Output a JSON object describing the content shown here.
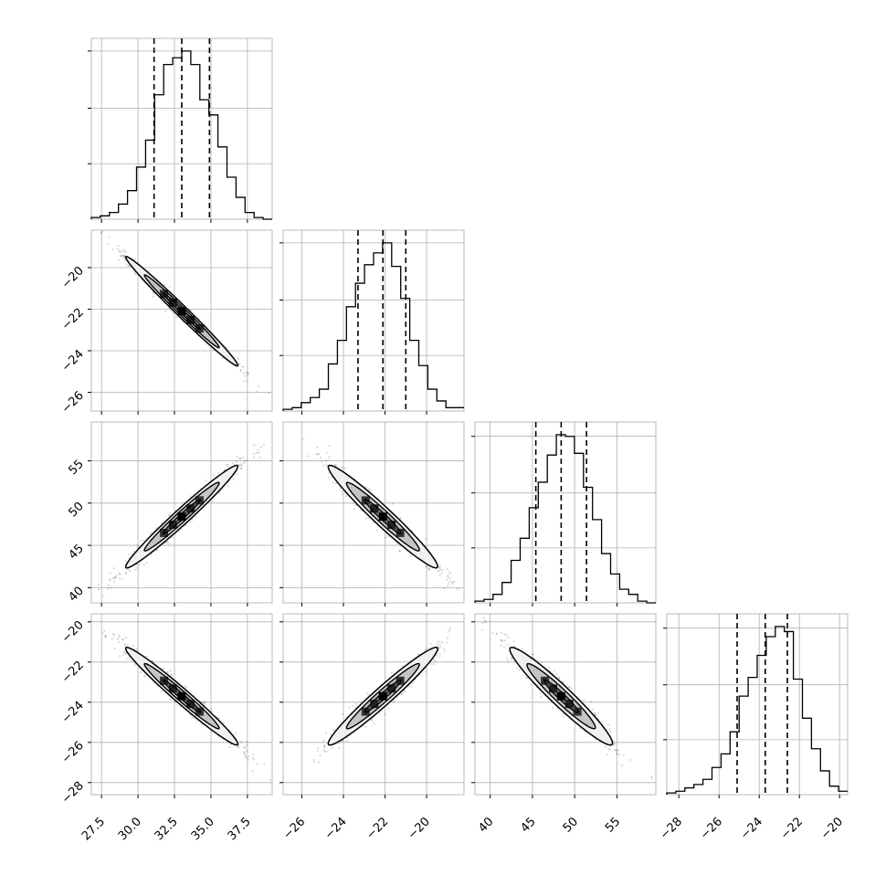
{
  "chart_data": {
    "type": "corner",
    "variables": [
      {
        "range": [
          26.8,
          39.2
        ],
        "ticks": [
          "27.5",
          "30.0",
          "32.5",
          "35.0",
          "37.5"
        ],
        "tick_values": [
          27.5,
          30.0,
          32.5,
          35.0,
          37.5
        ]
      },
      {
        "range": [
          -26.9,
          -18.2
        ],
        "ticks": [
          "-26",
          "-24",
          "-22",
          "-20"
        ],
        "tick_values": [
          -26,
          -24,
          -22,
          -20
        ]
      },
      {
        "range": [
          38.2,
          59.6
        ],
        "ticks": [
          "40",
          "45",
          "50",
          "55"
        ],
        "tick_values": [
          40,
          45,
          50,
          55
        ]
      },
      {
        "range": [
          -28.6,
          -19.6
        ],
        "ticks": [
          "-28",
          "-26",
          "-24",
          "-22",
          "-20"
        ],
        "tick_values": [
          -28,
          -26,
          -24,
          -22,
          -20
        ]
      }
    ],
    "histograms": [
      {
        "bin_edges": [
          26.8,
          27.42,
          28.04,
          28.66,
          29.28,
          29.9,
          30.52,
          31.14,
          31.76,
          32.38,
          33.0,
          33.62,
          34.24,
          34.86,
          35.48,
          36.1,
          36.72,
          37.34,
          37.96,
          38.58,
          39.2
        ],
        "counts": [
          0.01,
          0.02,
          0.04,
          0.09,
          0.17,
          0.31,
          0.47,
          0.74,
          0.92,
          0.96,
          1.0,
          0.92,
          0.71,
          0.62,
          0.43,
          0.25,
          0.13,
          0.04,
          0.01,
          0.0
        ],
        "quantiles": [
          31.1,
          33.0,
          34.9
        ]
      },
      {
        "bin_edges": [
          -26.9,
          -26.465,
          -26.03,
          -25.595,
          -25.16,
          -24.725,
          -24.29,
          -23.855,
          -23.42,
          -22.985,
          -22.55,
          -22.115,
          -21.68,
          -21.245,
          -20.81,
          -20.375,
          -19.94,
          -19.505,
          -19.07,
          -18.635,
          -18.2
        ],
        "counts": [
          0.01,
          0.02,
          0.05,
          0.08,
          0.13,
          0.28,
          0.42,
          0.62,
          0.76,
          0.87,
          0.94,
          1.0,
          0.86,
          0.67,
          0.42,
          0.27,
          0.13,
          0.06,
          0.02,
          0.02
        ],
        "quantiles": [
          -23.3,
          -22.1,
          -21.0
        ]
      },
      {
        "bin_edges": [
          38.2,
          39.27,
          40.34,
          41.41,
          42.48,
          43.55,
          44.62,
          45.69,
          46.76,
          47.83,
          48.9,
          49.97,
          51.04,
          52.11,
          53.18,
          54.25,
          55.32,
          56.39,
          57.46,
          58.53,
          59.6
        ],
        "counts": [
          0.01,
          0.02,
          0.05,
          0.12,
          0.25,
          0.38,
          0.56,
          0.71,
          0.87,
          0.99,
          0.98,
          0.88,
          0.68,
          0.49,
          0.29,
          0.17,
          0.08,
          0.05,
          0.01,
          0.0
        ],
        "quantiles": [
          45.4,
          48.4,
          51.4
        ]
      },
      {
        "bin_edges": [
          -28.6,
          -28.15,
          -27.7,
          -27.25,
          -26.8,
          -26.35,
          -25.9,
          -25.45,
          -25.0,
          -24.55,
          -24.1,
          -23.65,
          -23.2,
          -22.75,
          -22.3,
          -21.85,
          -21.4,
          -20.95,
          -20.5,
          -20.05,
          -19.6
        ],
        "counts": [
          0.01,
          0.02,
          0.04,
          0.06,
          0.09,
          0.16,
          0.24,
          0.37,
          0.58,
          0.69,
          0.82,
          0.93,
          0.99,
          0.96,
          0.68,
          0.45,
          0.27,
          0.14,
          0.05,
          0.02
        ],
        "quantiles": [
          -25.1,
          -23.7,
          -22.6
        ]
      }
    ],
    "pairs": [
      {
        "x_var": 0,
        "y_var": 1,
        "mean": [
          33.0,
          -22.1
        ],
        "sd": [
          1.9,
          1.3
        ],
        "corr": -0.99
      },
      {
        "x_var": 0,
        "y_var": 2,
        "mean": [
          33.0,
          48.4
        ],
        "sd": [
          1.9,
          3.0
        ],
        "corr": 0.98
      },
      {
        "x_var": 1,
        "y_var": 2,
        "mean": [
          -22.1,
          48.4
        ],
        "sd": [
          1.3,
          3.0
        ],
        "corr": -0.97
      },
      {
        "x_var": 0,
        "y_var": 3,
        "mean": [
          33.0,
          -23.7
        ],
        "sd": [
          1.9,
          1.2
        ],
        "corr": -0.98
      },
      {
        "x_var": 1,
        "y_var": 3,
        "mean": [
          -22.1,
          -23.7
        ],
        "sd": [
          1.3,
          1.2
        ],
        "corr": 0.97
      },
      {
        "x_var": 2,
        "y_var": 3,
        "mean": [
          48.4,
          -23.7
        ],
        "sd": [
          3.0,
          1.2
        ],
        "corr": -0.96
      }
    ],
    "contour_levels": [
      0.5,
      1.0,
      1.5
    ],
    "quantiles_shown": [
      0.16,
      0.5,
      0.84
    ],
    "grid": true,
    "colors": {
      "line": "#000000",
      "scatter": "#000000",
      "frame": "#b9b9b9",
      "grid": "#b0b0b0"
    }
  }
}
